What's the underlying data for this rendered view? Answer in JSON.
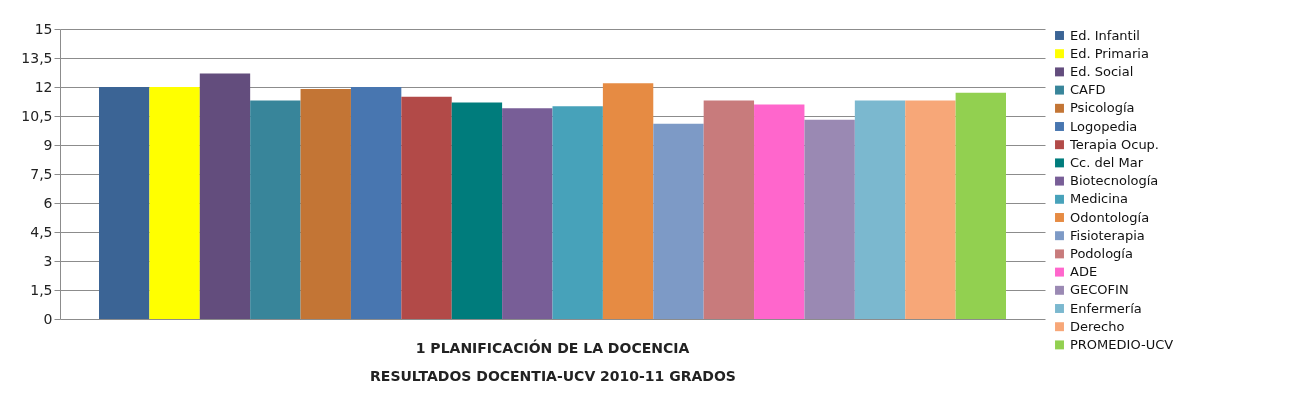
{
  "chart_data": {
    "type": "bar",
    "xlabel": "RESULTADOS DOCENTIA-UCV 2010-11 GRADOS",
    "categories": [
      "1 PLANIFICACIÓN DE LA DOCENCIA"
    ],
    "ylim": [
      0,
      15
    ],
    "yticks": [
      0,
      {
        "value": 1.5,
        "label": "1,5"
      },
      3,
      {
        "value": 4.5,
        "label": "4,5"
      },
      6,
      {
        "value": 7.5,
        "label": "7,5"
      },
      9,
      {
        "value": 10.5,
        "label": "10,5"
      },
      12,
      {
        "value": 13.5,
        "label": "13,5"
      },
      15
    ],
    "grid": "y",
    "legend": "right",
    "series": [
      {
        "name": "Ed. Infantil",
        "color": "#3b6495",
        "values": [
          12.0
        ]
      },
      {
        "name": "Ed. Primaria",
        "color": "#ffff00",
        "values": [
          12.0
        ]
      },
      {
        "name": "Ed. Social",
        "color": "#634d7d",
        "values": [
          12.7
        ]
      },
      {
        "name": "CAFD",
        "color": "#38859a",
        "values": [
          11.3
        ]
      },
      {
        "name": "Psicología",
        "color": "#c37535",
        "values": [
          11.9
        ]
      },
      {
        "name": "Logopedia",
        "color": "#4876b0",
        "values": [
          12.0
        ]
      },
      {
        "name": "Terapia Ocup.",
        "color": "#b24a48",
        "values": [
          11.5
        ]
      },
      {
        "name": "Cc. del Mar",
        "color": "#007c7c",
        "values": [
          11.2
        ]
      },
      {
        "name": "Biotecnología",
        "color": "#785e97",
        "values": [
          10.9
        ]
      },
      {
        "name": "Medicina",
        "color": "#47a2ba",
        "values": [
          11.0
        ]
      },
      {
        "name": "Odontología",
        "color": "#e68b43",
        "values": [
          12.2
        ]
      },
      {
        "name": "Fisioterapia",
        "color": "#7d9ac6",
        "values": [
          10.1
        ]
      },
      {
        "name": "Podología",
        "color": "#c87b7c",
        "values": [
          11.3
        ]
      },
      {
        "name": "ADE",
        "color": "#ff66cc",
        "values": [
          11.1
        ]
      },
      {
        "name": "GECOFIN",
        "color": "#9a89b3",
        "values": [
          10.3
        ]
      },
      {
        "name": "Enfermería",
        "color": "#7bb8cf",
        "values": [
          11.3
        ]
      },
      {
        "name": "Derecho",
        "color": "#f7a778",
        "values": [
          11.3
        ]
      },
      {
        "name": "PROMEDIO-UCV",
        "color": "#92d050",
        "values": [
          11.7
        ]
      }
    ]
  }
}
